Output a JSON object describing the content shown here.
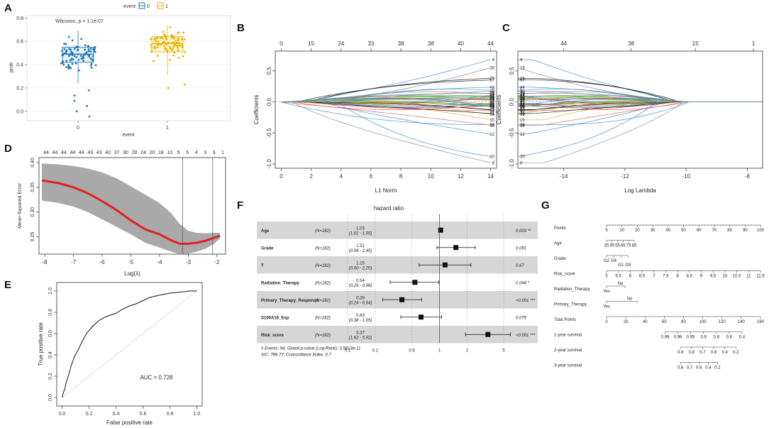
{
  "panels": {
    "A": "A",
    "B": "B",
    "C": "C",
    "D": "D",
    "E": "E",
    "F": "F",
    "G": "G"
  },
  "colors": {
    "event0": "#1f77b4",
    "event1": "#e8b100",
    "cv_line": "#e02020",
    "cv_band": "#9a9a9a",
    "roc": "#111111"
  },
  "chart_data": [
    {
      "id": "A",
      "type": "box",
      "title": "Wilcoxon, p = 1.1e-07",
      "legend": {
        "title": "event",
        "entries": [
          "0",
          "1"
        ]
      },
      "xlabel": "event",
      "ylabel": "prob",
      "categories": [
        "0",
        "1"
      ],
      "ylim": [
        -0.08,
        0.82
      ],
      "yticks": [
        "0.0",
        "0.2",
        "0.4",
        "0.6",
        "0.8"
      ],
      "ytick_values": [
        0,
        0.2,
        0.4,
        0.6,
        0.8
      ],
      "boxes": [
        {
          "name": "0",
          "q1": 0.42,
          "median": 0.49,
          "q3": 0.55,
          "whisker_low": 0.24,
          "whisker_high": 0.69
        },
        {
          "name": "1",
          "q1": 0.51,
          "median": 0.58,
          "q3": 0.64,
          "whisker_low": 0.31,
          "whisker_high": 0.74
        }
      ]
    },
    {
      "id": "B",
      "type": "line",
      "xlabel": "L1 Norm",
      "ylabel": "Coefficients",
      "xlim": [
        0,
        14
      ],
      "ylim": [
        -1.0,
        0.75
      ],
      "xticks": [
        "0",
        "2",
        "4",
        "6",
        "8",
        "10",
        "12",
        "14"
      ],
      "yticks": [
        "-1.0",
        "-0.5",
        "0.0",
        "0.5"
      ],
      "top_ticks": [
        "0",
        "15",
        "24",
        "33",
        "38",
        "38",
        "40",
        "44"
      ],
      "series_count": 44
    },
    {
      "id": "C",
      "type": "line",
      "xlabel": "Log Lambda",
      "ylabel": "Coefficients",
      "xlim": [
        -15.5,
        -7.5
      ],
      "ylim": [
        -1.0,
        0.75
      ],
      "xticks": [
        "-14",
        "-12",
        "-10",
        "-8"
      ],
      "xtick_values": [
        -14,
        -12,
        -10,
        -8
      ],
      "yticks": [
        "-1.0",
        "-0.5",
        "0.0",
        "0.5"
      ],
      "top_ticks": [
        "44",
        "38",
        "15",
        "1"
      ],
      "top_tick_values": [
        -14,
        -11.8,
        -9.7,
        -7.8
      ],
      "series_count": 44
    },
    {
      "id": "D",
      "type": "line",
      "xlabel": "Log(λ)",
      "ylabel": "Mean-Squared Error",
      "xlim": [
        -8.2,
        -1.7
      ],
      "ylim": [
        0.215,
        0.41
      ],
      "xticks": [
        "-8",
        "-7",
        "-6",
        "-5",
        "-4",
        "-3",
        "-2"
      ],
      "xtick_values": [
        -8,
        -7,
        -6,
        -5,
        -4,
        -3,
        -2
      ],
      "yticks": [
        "0.25",
        "0.30",
        "0.35",
        "0.40"
      ],
      "ytick_values": [
        0.25,
        0.3,
        0.35,
        0.4
      ],
      "top_ticks": [
        "44",
        "44",
        "44",
        "44",
        "44",
        "43",
        "43",
        "40",
        "37",
        "30",
        "28",
        "24",
        "20",
        "18",
        "10",
        "5",
        "5",
        "4",
        "3",
        "3",
        "1"
      ],
      "lambda_min": -3.2,
      "lambda_1se": -2.15,
      "x": [
        -8.1,
        -7.5,
        -7.0,
        -6.5,
        -6.0,
        -5.5,
        -5.0,
        -4.5,
        -4.0,
        -3.6,
        -3.3,
        -3.0,
        -2.7,
        -2.4,
        -2.1,
        -1.9
      ],
      "y": [
        0.364,
        0.358,
        0.35,
        0.338,
        0.322,
        0.304,
        0.283,
        0.265,
        0.255,
        0.243,
        0.236,
        0.236,
        0.238,
        0.242,
        0.248,
        0.252
      ],
      "band_upper": [
        0.398,
        0.396,
        0.393,
        0.388,
        0.38,
        0.368,
        0.352,
        0.335,
        0.318,
        0.298,
        0.276,
        0.262,
        0.258,
        0.257,
        0.258,
        0.258
      ],
      "band_lower": [
        0.323,
        0.318,
        0.311,
        0.3,
        0.285,
        0.27,
        0.255,
        0.238,
        0.228,
        0.22,
        0.215,
        0.216,
        0.22,
        0.226,
        0.236,
        0.246
      ]
    },
    {
      "id": "E",
      "type": "line",
      "xlabel": "False positive rate",
      "ylabel": "True positive rate",
      "xlim": [
        0,
        1
      ],
      "ylim": [
        0,
        1
      ],
      "xticks": [
        "0.0",
        "0.2",
        "0.4",
        "0.6",
        "0.8",
        "1.0"
      ],
      "yticks": [
        "0.0",
        "0.2",
        "0.4",
        "0.6",
        "0.8",
        "1.0"
      ],
      "tick_values": [
        0,
        0.2,
        0.4,
        0.6,
        0.8,
        1
      ],
      "annotation": "AUC = 0.728",
      "x": [
        0,
        0.01,
        0.02,
        0.03,
        0.05,
        0.07,
        0.09,
        0.12,
        0.15,
        0.18,
        0.22,
        0.27,
        0.31,
        0.35,
        0.4,
        0.45,
        0.5,
        0.55,
        0.6,
        0.65,
        0.72,
        0.8,
        0.88,
        0.95,
        1.0
      ],
      "y": [
        0,
        0.05,
        0.08,
        0.14,
        0.22,
        0.31,
        0.38,
        0.45,
        0.53,
        0.6,
        0.66,
        0.72,
        0.75,
        0.77,
        0.79,
        0.83,
        0.86,
        0.88,
        0.91,
        0.94,
        0.96,
        0.98,
        0.99,
        1.0,
        1.0
      ]
    },
    {
      "id": "F",
      "type": "forest",
      "title": "hazard ratio",
      "xscale": "log",
      "xticks": [
        "0.1",
        "0.2",
        "0.5",
        "1",
        "2",
        "5"
      ],
      "xtick_values": [
        0.1,
        0.2,
        0.5,
        1,
        2,
        5
      ],
      "rows": [
        {
          "name": "Age",
          "n": "(N=182)",
          "hr": "1.03",
          "ci": "(1.01 - 1.05)",
          "pv": "0.003 **",
          "hr_v": 1.03,
          "lo": 1.01,
          "hi": 1.05
        },
        {
          "name": "Grade",
          "n": "(N=182)",
          "hr": "1.51",
          "ci": "(0.94 - 2.45)",
          "pv": "0.091",
          "hr_v": 1.51,
          "lo": 0.94,
          "hi": 2.45
        },
        {
          "name": "T",
          "n": "(N=182)",
          "hr": "1.15",
          "ci": "(0.60 - 2.20)",
          "pv": "0.67",
          "hr_v": 1.15,
          "lo": 0.6,
          "hi": 2.2
        },
        {
          "name": "Radiation_Therapy",
          "n": "(N=182)",
          "hr": "0.54",
          "ci": "(0.29 - 0.98)",
          "pv": "0.044 *",
          "hr_v": 0.54,
          "lo": 0.29,
          "hi": 0.98
        },
        {
          "name": "Primary_Therapy_Response",
          "n": "(N=182)",
          "hr": "0.39",
          "ci": "(0.24 - 0.64)",
          "pv": "<0.001 ***",
          "hr_v": 0.39,
          "lo": 0.24,
          "hi": 0.64
        },
        {
          "name": "S100A16_Exp",
          "n": "(N=182)",
          "hr": "0.63",
          "ci": "(0.38 - 1.05)",
          "pv": "0.075",
          "hr_v": 0.63,
          "lo": 0.38,
          "hi": 1.05
        },
        {
          "name": "Risk_score",
          "n": "(N=182)",
          "hr": "3.37",
          "ci": "(1.92 - 5.92)",
          "pv": "<0.001 ***",
          "hr_v": 3.37,
          "lo": 1.92,
          "hi": 5.92
        }
      ],
      "footer1": "# Events: 94; Global p-value (Log-Rank): 3.5813e-11",
      "footer2": "AIC: 789.77; Concordance Index: 0.7"
    },
    {
      "id": "G",
      "type": "nomogram",
      "rows": [
        {
          "label": "Points",
          "ticks": [
            "0",
            "10",
            "20",
            "30",
            "40",
            "50",
            "60",
            "70",
            "80",
            "90",
            "100"
          ],
          "start": 0,
          "end": 100
        },
        {
          "label": "Age",
          "ticks": [
            "35",
            "45",
            "55",
            "65",
            "75",
            "85"
          ],
          "start": 0,
          "end": 18
        },
        {
          "label": "Grade",
          "ticks": [
            "G2",
            "G4",
            "G1",
            "G3"
          ],
          "start": 0,
          "end": 14
        },
        {
          "label": "Risk_score",
          "ticks": [
            "5",
            "5.5",
            "6",
            "6.5",
            "7",
            "7.5",
            "8",
            "8.5",
            "9",
            "9.5",
            "10",
            "10.5",
            "11",
            "11.5"
          ],
          "start": 0,
          "end": 100
        },
        {
          "label": "Radiation_Therapy",
          "ticks": [
            "No",
            "Yes"
          ],
          "start": 0,
          "end": 12
        },
        {
          "label": "Primary_Therapy",
          "ticks": [
            "No",
            "Yes"
          ],
          "start": 0,
          "end": 20
        },
        {
          "label": "Total Points",
          "ticks": [
            "0",
            "20",
            "40",
            "60",
            "80",
            "100",
            "120",
            "140",
            "160"
          ],
          "start": 0,
          "end": 100
        },
        {
          "label": "1-year survival",
          "ticks": [
            "0.99",
            "0.98",
            "0.95",
            "0.9",
            "0.8",
            "0.6",
            "0.4"
          ],
          "start": 38,
          "end": 88
        },
        {
          "label": "2-year survival",
          "ticks": [
            "0.9",
            "0.8",
            "0.7",
            "0.6",
            "0.4",
            "0.2"
          ],
          "start": 48,
          "end": 84
        },
        {
          "label": "3-year survival",
          "ticks": [
            "0.8",
            "0.7",
            "0.6",
            "0.4",
            "0.2"
          ],
          "start": 48,
          "end": 72
        }
      ]
    }
  ]
}
